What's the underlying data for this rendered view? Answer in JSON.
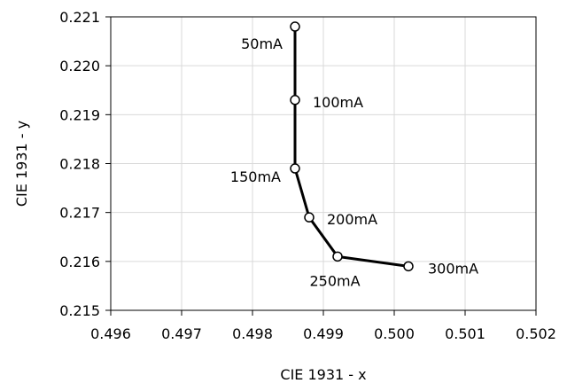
{
  "chart_data": {
    "type": "line",
    "title": "",
    "xlabel": "CIE 1931 - x",
    "ylabel": "CIE 1931 - y",
    "xlim": [
      0.496,
      0.502
    ],
    "ylim": [
      0.215,
      0.221
    ],
    "x_ticks": [
      "0.496",
      "0.497",
      "0.498",
      "0.499",
      "0.500",
      "0.501",
      "0.502"
    ],
    "y_ticks": [
      "0.215",
      "0.216",
      "0.217",
      "0.218",
      "0.219",
      "0.220",
      "0.221"
    ],
    "grid": true,
    "legend": "none",
    "line_color": "#000000",
    "series": [
      {
        "points": [
          {
            "x": 0.4986,
            "y": 0.2208,
            "label": "50mA"
          },
          {
            "x": 0.4986,
            "y": 0.2193,
            "label": "100mA"
          },
          {
            "x": 0.4986,
            "y": 0.2179,
            "label": "150mA"
          },
          {
            "x": 0.4988,
            "y": 0.2169,
            "label": "200mA"
          },
          {
            "x": 0.4992,
            "y": 0.2161,
            "label": "250mA"
          },
          {
            "x": 0.5002,
            "y": 0.2159,
            "label": "300mA"
          }
        ]
      }
    ]
  }
}
